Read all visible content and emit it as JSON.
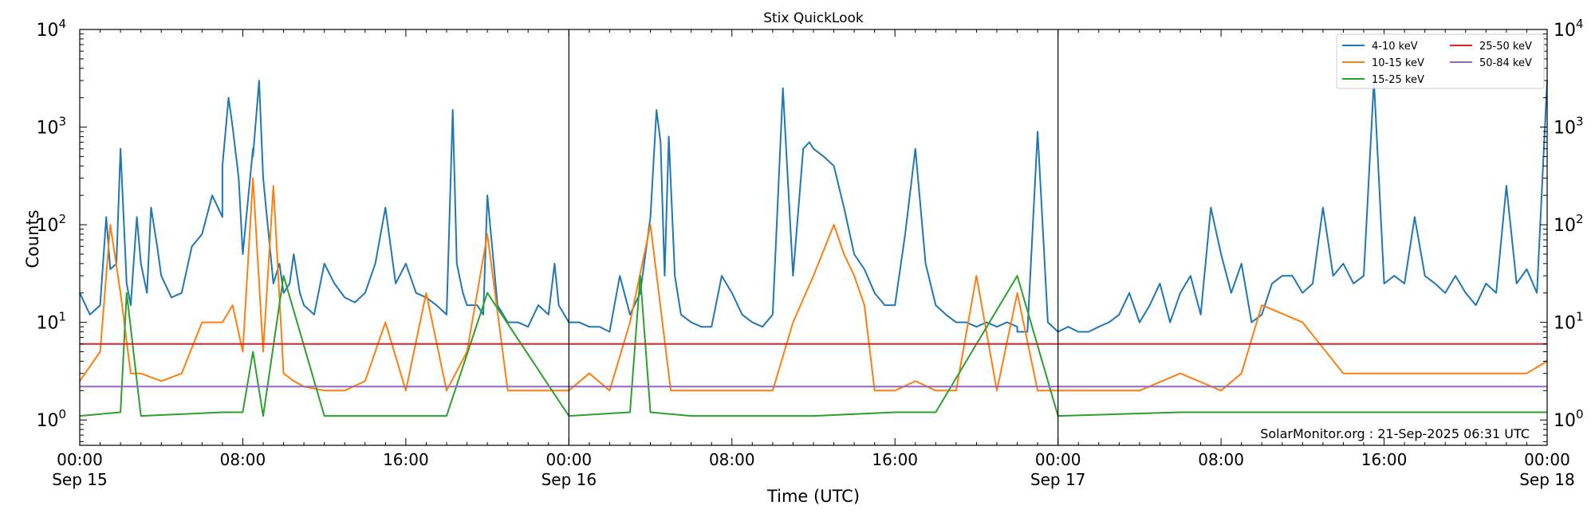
{
  "chart_data": {
    "type": "line",
    "title": "Stix QuickLook",
    "xlabel": "Time (UTC)",
    "ylabel": "Counts",
    "yscale": "log",
    "ylim": [
      0.55,
      10000
    ],
    "xlim_hours": [
      0,
      72
    ],
    "grid": false,
    "legend_position": "top-right",
    "legend_columns": 2,
    "annotation": "SolarMonitor.org : 21-Sep-2025 06:31 UTC",
    "y_ticks": [
      {
        "value": 1,
        "base": "10",
        "exp": "0"
      },
      {
        "value": 10,
        "base": "10",
        "exp": "1"
      },
      {
        "value": 100,
        "base": "10",
        "exp": "2"
      },
      {
        "value": 1000,
        "base": "10",
        "exp": "3"
      },
      {
        "value": 10000,
        "base": "10",
        "exp": "4"
      }
    ],
    "x_ticks": [
      {
        "hour": 0,
        "time": "00:00",
        "date": "Sep 15"
      },
      {
        "hour": 8,
        "time": "08:00",
        "date": ""
      },
      {
        "hour": 16,
        "time": "16:00",
        "date": ""
      },
      {
        "hour": 24,
        "time": "00:00",
        "date": "Sep 16"
      },
      {
        "hour": 32,
        "time": "08:00",
        "date": ""
      },
      {
        "hour": 40,
        "time": "16:00",
        "date": ""
      },
      {
        "hour": 48,
        "time": "00:00",
        "date": "Sep 17"
      },
      {
        "hour": 56,
        "time": "08:00",
        "date": ""
      },
      {
        "hour": 64,
        "time": "16:00",
        "date": ""
      },
      {
        "hour": 72,
        "time": "00:00",
        "date": "Sep 18"
      }
    ],
    "day_boundaries_hours": [
      24,
      48
    ],
    "series": [
      {
        "name": "4-10 keV",
        "color": "#1f77b4",
        "x": [
          0,
          0.5,
          1,
          1.3,
          1.5,
          1.8,
          2.0,
          2.3,
          2.5,
          2.8,
          3,
          3.3,
          3.5,
          3.8,
          4,
          4.5,
          5,
          5.5,
          6,
          6.5,
          7,
          7,
          7.3,
          7.5,
          7.8,
          8,
          8.5,
          8.5,
          8.8,
          9,
          9.5,
          9.8,
          10,
          10.3,
          10.5,
          10.8,
          11,
          11.5,
          12,
          12.5,
          13,
          13.5,
          14,
          14.5,
          15,
          15.5,
          16,
          16.5,
          17,
          17.5,
          18,
          18.3,
          18.5,
          18.8,
          19,
          19.5,
          19.8,
          20,
          20.5,
          21,
          21.5,
          22,
          22.5,
          23,
          23.3,
          23.5,
          24,
          24.5,
          25,
          25.5,
          26,
          26.5,
          27,
          27.5,
          28,
          28.3,
          28.5,
          28.7,
          28.9,
          29.2,
          29.5,
          30,
          30.5,
          31,
          31.5,
          32,
          32.5,
          33,
          33.5,
          34,
          34.5,
          35,
          35.5,
          35.8,
          36,
          36.5,
          37,
          37.5,
          38,
          38.5,
          39,
          39.5,
          40,
          40.5,
          41,
          41.5,
          42,
          42.5,
          43,
          43.5,
          44,
          44.5,
          45,
          45.5,
          46,
          46,
          46.5,
          47,
          47.5,
          48,
          48.5,
          49,
          49.5,
          50,
          50.5,
          51,
          51.5,
          52,
          52.5,
          53,
          53.5,
          54,
          54.5,
          55,
          55.5,
          56,
          56.5,
          57,
          57.5,
          58,
          58.5,
          59,
          59.5,
          60,
          60.5,
          61,
          61.5,
          62,
          62.5,
          63,
          63.5,
          64,
          64.5,
          65,
          65.5,
          66,
          66.5,
          67,
          67.5,
          68,
          68.5,
          69,
          69.5,
          70,
          70.5,
          71,
          71.5,
          72
        ],
        "values": [
          20,
          12,
          15,
          120,
          35,
          40,
          600,
          25,
          15,
          120,
          40,
          20,
          150,
          60,
          30,
          18,
          20,
          60,
          80,
          200,
          120,
          400,
          2000,
          1000,
          300,
          50,
          600,
          500,
          3000,
          300,
          25,
          40,
          20,
          25,
          50,
          20,
          15,
          12,
          40,
          25,
          18,
          16,
          20,
          40,
          150,
          25,
          40,
          20,
          18,
          15,
          12,
          1500,
          40,
          20,
          15,
          15,
          12,
          200,
          15,
          10,
          10,
          9,
          15,
          12,
          40,
          15,
          10,
          10,
          9,
          9,
          8,
          30,
          12,
          20,
          120,
          1500,
          700,
          30,
          800,
          30,
          12,
          10,
          9,
          9,
          30,
          20,
          12,
          10,
          9,
          12,
          2500,
          30,
          600,
          700,
          600,
          500,
          400,
          150,
          50,
          35,
          20,
          15,
          15,
          80,
          600,
          40,
          15,
          12,
          10,
          10,
          9,
          10,
          9,
          10,
          9,
          8,
          8,
          900,
          10,
          8,
          9,
          8,
          8,
          9,
          10,
          12,
          20,
          10,
          15,
          25,
          10,
          20,
          30,
          12,
          150,
          50,
          20,
          40,
          10,
          12,
          25,
          30,
          30,
          20,
          25,
          150,
          30,
          40,
          25,
          30,
          3000,
          25,
          30,
          25,
          120,
          30,
          25,
          20,
          30,
          20,
          15,
          25,
          20,
          250,
          25,
          35,
          20,
          3000
        ]
      },
      {
        "name": "10-15 keV",
        "color": "#ff7f0e",
        "x": [
          0,
          1,
          1.5,
          2,
          2.5,
          3,
          4,
          5,
          6,
          7,
          7.5,
          8,
          8.5,
          9,
          9.5,
          10,
          10.5,
          11,
          12,
          13,
          14,
          15,
          16,
          17,
          18,
          19,
          20,
          21,
          22,
          23,
          24,
          25,
          26,
          27,
          28,
          29,
          30,
          31,
          32,
          33,
          34,
          35,
          36,
          37,
          37.5,
          38,
          38.5,
          39,
          40,
          41,
          42,
          43,
          44,
          45,
          46,
          47,
          48,
          50,
          52,
          54,
          56,
          57,
          58,
          60,
          62,
          64,
          66,
          68,
          70,
          71,
          72
        ],
        "values": [
          2.5,
          5,
          100,
          20,
          3,
          3,
          2.5,
          3,
          10,
          10,
          15,
          5,
          300,
          5,
          250,
          3,
          2.5,
          2.2,
          2,
          2,
          2.5,
          10,
          2,
          20,
          2,
          5,
          80,
          2,
          2,
          2,
          2,
          3,
          2,
          10,
          100,
          2,
          2,
          2,
          2,
          2,
          2,
          10,
          30,
          100,
          50,
          30,
          15,
          2,
          2,
          2.5,
          2,
          2,
          30,
          2,
          20,
          2,
          2,
          2,
          2,
          3,
          2,
          3,
          15,
          10,
          3,
          3,
          3,
          3,
          3,
          3,
          4
        ]
      },
      {
        "name": "15-25 keV",
        "color": "#2ca02c",
        "x": [
          0,
          2,
          2.3,
          3,
          7,
          8,
          8.5,
          9,
          10,
          12,
          18,
          20,
          24,
          27,
          27.5,
          28,
          30,
          36,
          40,
          42,
          46,
          48,
          54,
          60,
          64,
          72
        ],
        "values": [
          1.1,
          1.2,
          20,
          1.1,
          1.2,
          1.2,
          5,
          1.1,
          30,
          1.1,
          1.1,
          20,
          1.1,
          1.2,
          30,
          1.2,
          1.1,
          1.1,
          1.2,
          1.2,
          30,
          1.1,
          1.2,
          1.2,
          1.2,
          1.2
        ]
      },
      {
        "name": "25-50 keV",
        "color": "#d62728",
        "x": [
          0,
          72
        ],
        "values": [
          6,
          6
        ]
      },
      {
        "name": "50-84 keV",
        "color": "#9467bd",
        "x": [
          0,
          72
        ],
        "values": [
          2.2,
          2.2
        ]
      }
    ]
  }
}
